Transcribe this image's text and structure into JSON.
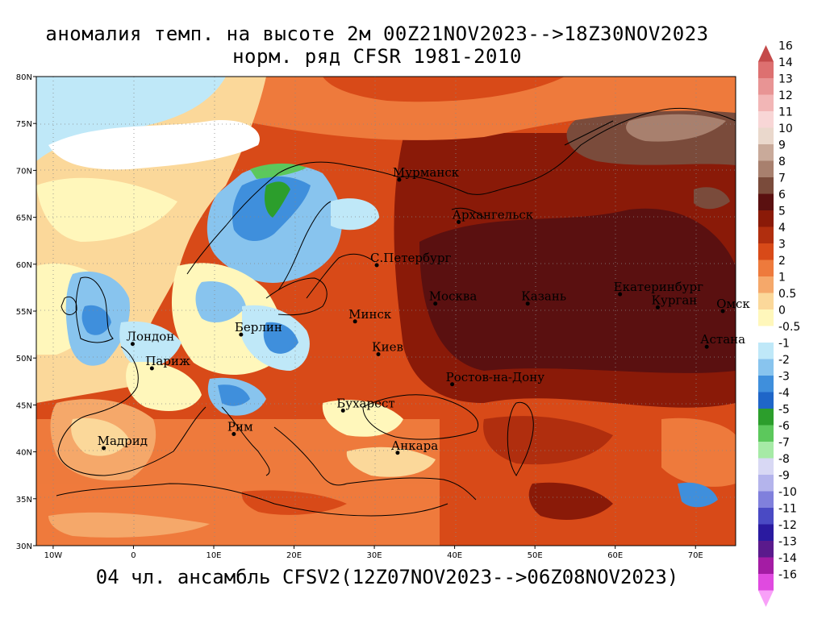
{
  "title": {
    "line1": "аномалия темп. на высоте 2м 00Z21NOV2023-->18Z30NOV2023",
    "line2": "норм. ряд CFSR 1981-2010"
  },
  "footer": "04 чл. ансамбль CFSV2(12Z07NOV2023-->06Z08NOV2023)",
  "map": {
    "lat_labels": [
      "80N",
      "75N",
      "70N",
      "65N",
      "60N",
      "55N",
      "50N",
      "45N",
      "40N",
      "35N",
      "30N"
    ],
    "lon_labels": [
      "10W",
      "0",
      "10E",
      "20E",
      "30E",
      "40E",
      "50E",
      "60E",
      "70E"
    ],
    "cities": [
      {
        "name": "Мурманск",
        "lon": 33.1,
        "lat": 69.0
      },
      {
        "name": "Архангельск",
        "lon": 40.5,
        "lat": 64.5
      },
      {
        "name": "С.Петербург",
        "lon": 30.3,
        "lat": 59.9
      },
      {
        "name": "Москва",
        "lon": 37.6,
        "lat": 55.8
      },
      {
        "name": "Казань",
        "lon": 49.1,
        "lat": 55.8
      },
      {
        "name": "Екатеринбург",
        "lon": 60.6,
        "lat": 56.8
      },
      {
        "name": "Курган",
        "lon": 65.3,
        "lat": 55.4
      },
      {
        "name": "Омск",
        "lon": 73.4,
        "lat": 55.0
      },
      {
        "name": "Астана",
        "lon": 71.4,
        "lat": 51.2
      },
      {
        "name": "Минск",
        "lon": 27.6,
        "lat": 53.9
      },
      {
        "name": "Берлин",
        "lon": 13.4,
        "lat": 52.5
      },
      {
        "name": "Лондон",
        "lon": -0.1,
        "lat": 51.5
      },
      {
        "name": "Париж",
        "lon": 2.3,
        "lat": 48.9
      },
      {
        "name": "Киев",
        "lon": 30.5,
        "lat": 50.4
      },
      {
        "name": "Ростов-на-Дону",
        "lon": 39.7,
        "lat": 47.2
      },
      {
        "name": "Бухарест",
        "lon": 26.1,
        "lat": 44.4
      },
      {
        "name": "Рим",
        "lon": 12.5,
        "lat": 41.9
      },
      {
        "name": "Мадрид",
        "lon": -3.7,
        "lat": 40.4
      },
      {
        "name": "Анкара",
        "lon": 32.9,
        "lat": 39.9
      }
    ]
  },
  "colorbar": {
    "labels": [
      "16",
      "14",
      "13",
      "12",
      "11",
      "10",
      "9",
      "8",
      "7",
      "6",
      "5",
      "4",
      "3",
      "2",
      "1",
      "0.5",
      "0",
      "-0.5",
      "-1",
      "-2",
      "-3",
      "-4",
      "-5",
      "-6",
      "-7",
      "-8",
      "-9",
      "-10",
      "-11",
      "-12",
      "-13",
      "-14",
      "-16"
    ],
    "colors": [
      "#c44a4a",
      "#dd7070",
      "#e89494",
      "#f2b6b6",
      "#f8d6d6",
      "#ead8cc",
      "#c9aa9a",
      "#a8806e",
      "#7a4b3b",
      "#5a1010",
      "#8a1a08",
      "#b02e0e",
      "#d84a18",
      "#ee7a3c",
      "#f5a86a",
      "#fbd89a",
      "#fff7bb",
      "#ffffff",
      "#bfe8f8",
      "#88c4ee",
      "#3f8fdc",
      "#1f66c8",
      "#2c9e2c",
      "#5cc85c",
      "#a6eaa6",
      "#d8d8f4",
      "#b4b4ec",
      "#8080dc",
      "#4a4ac4",
      "#2a1aa0",
      "#5a1a8c",
      "#a41ca4",
      "#e04ae0",
      "#f8a0f8"
    ]
  }
}
